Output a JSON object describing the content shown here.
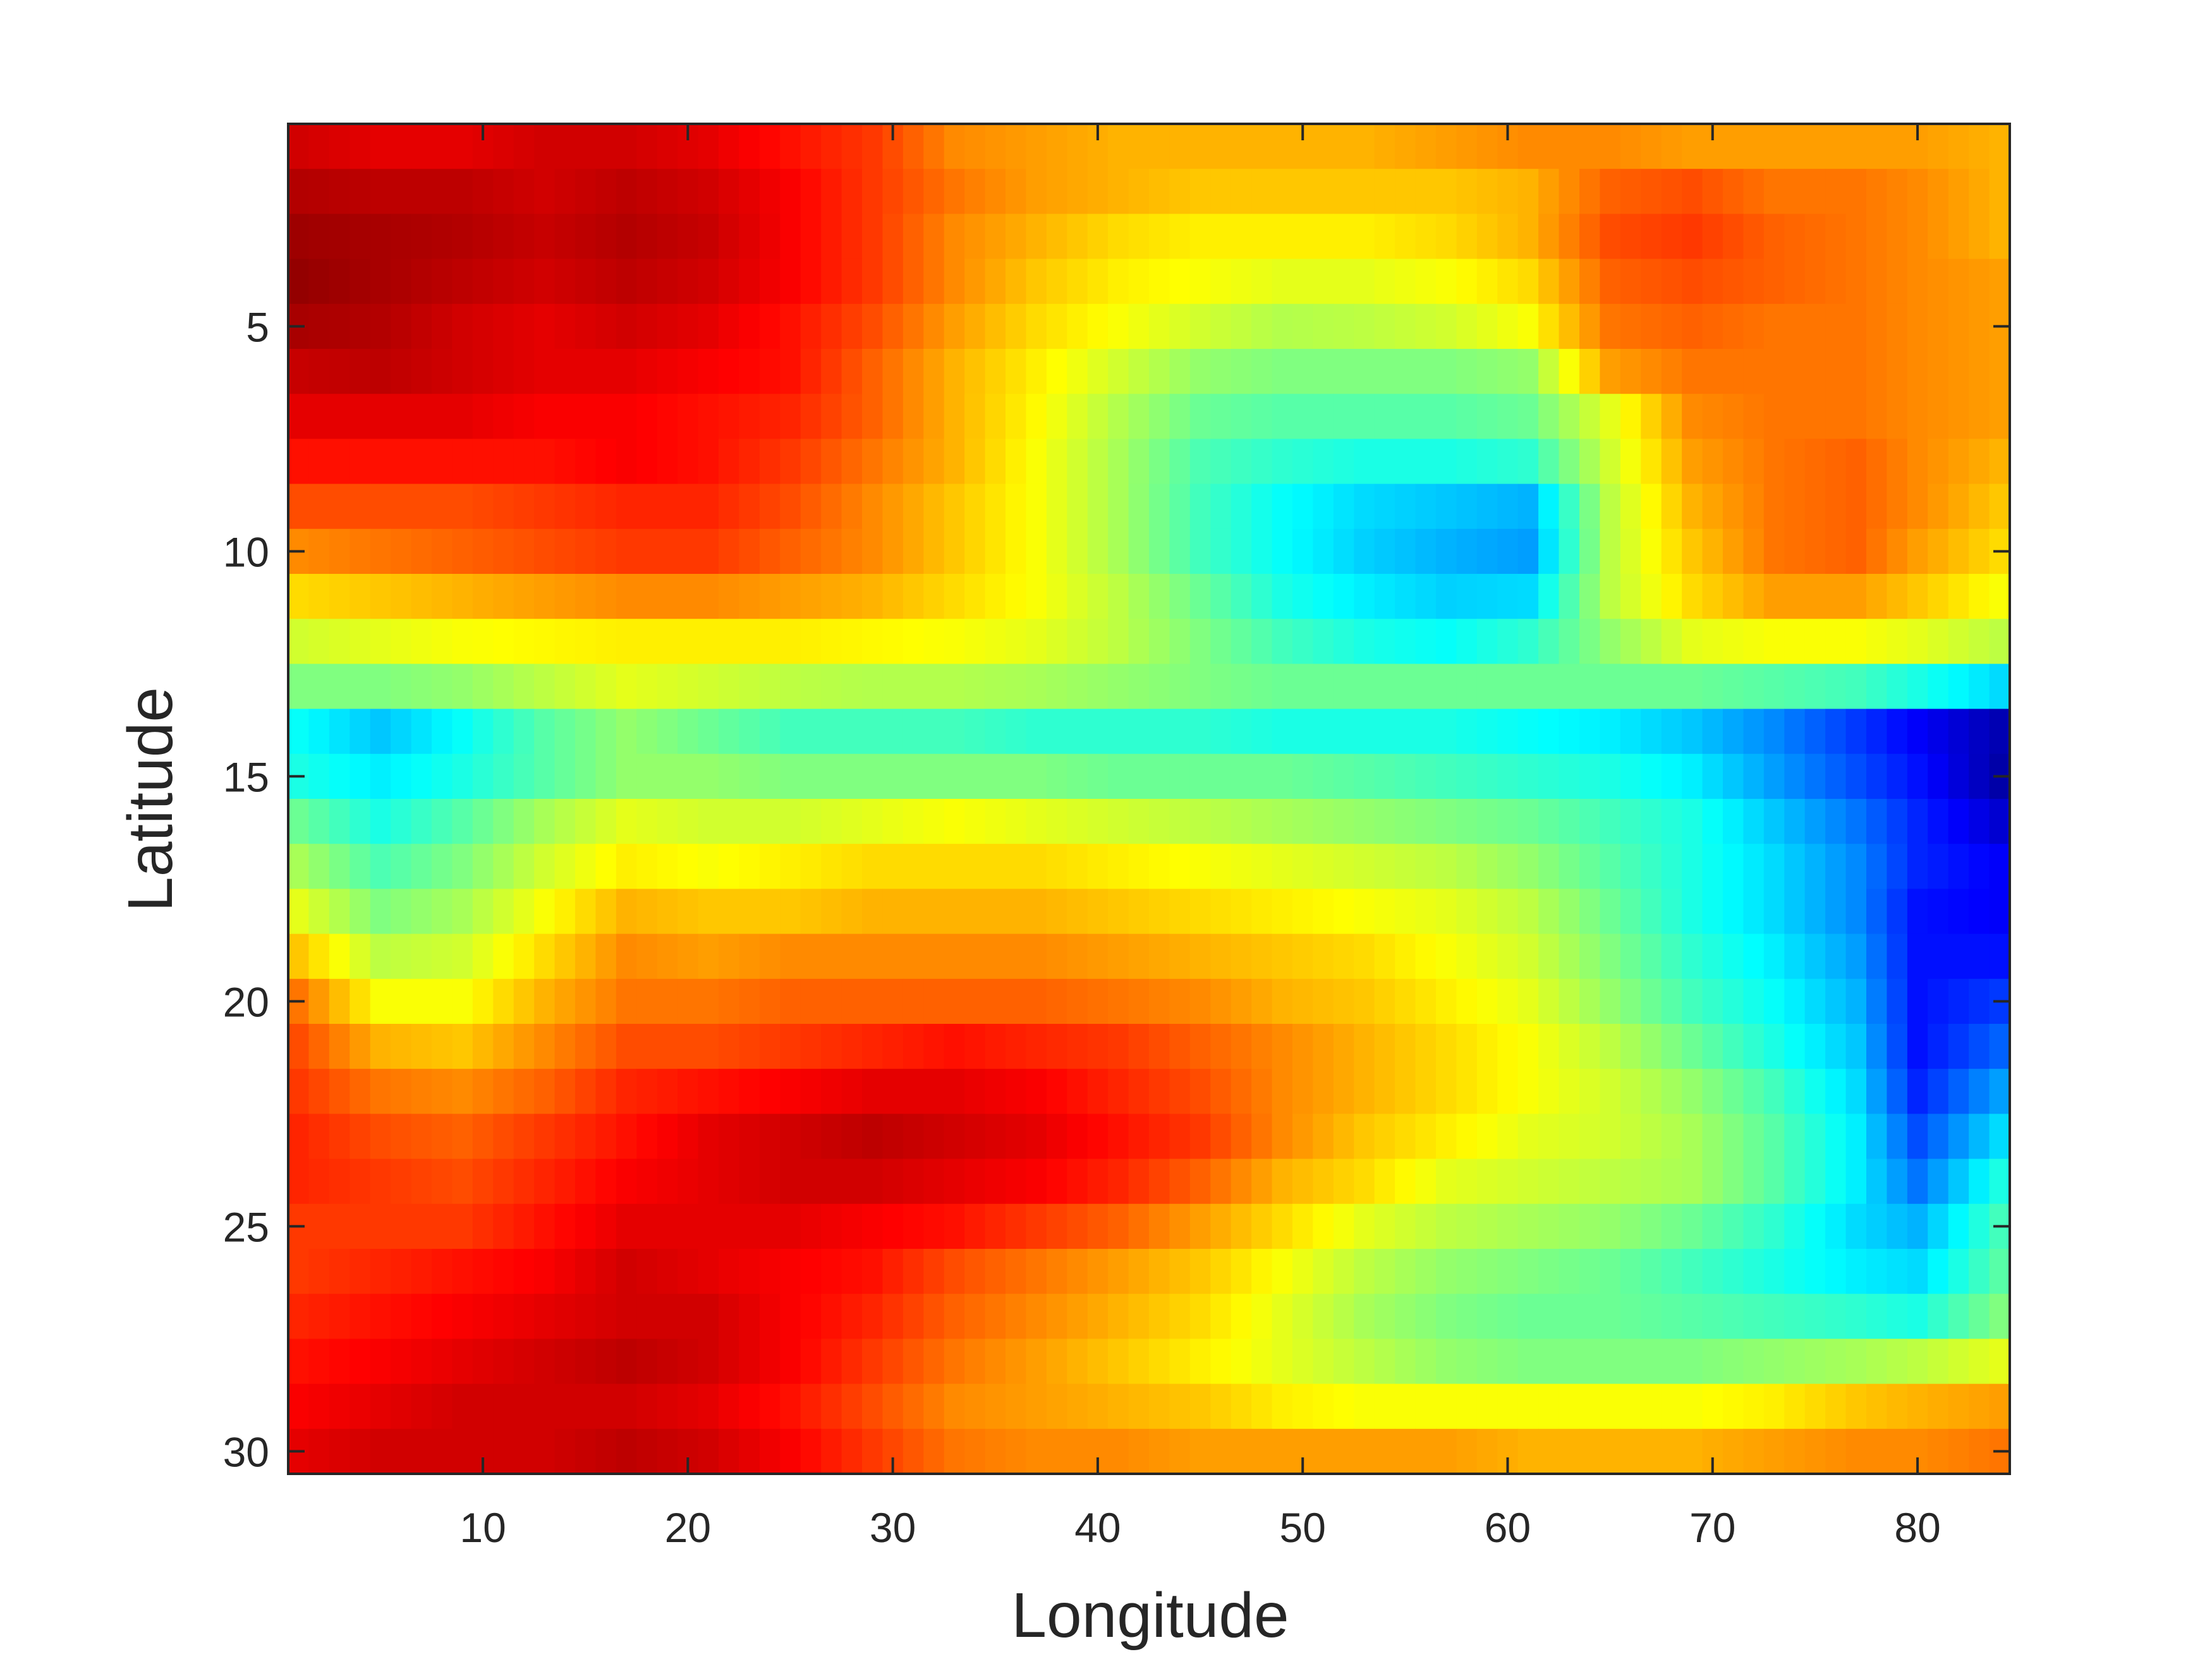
{
  "chart_data": {
    "type": "heatmap",
    "title": "",
    "xlabel": "Longitude",
    "ylabel": "Latitude",
    "colormap": "jet",
    "color_range": [
      0,
      1
    ],
    "x_range": [
      0.5,
      84.5
    ],
    "y_range": [
      0.5,
      30.5
    ],
    "y_direction": "reversed",
    "grid": false,
    "legend": "none",
    "xticks": [
      10,
      20,
      30,
      40,
      50,
      60,
      70,
      80
    ],
    "xtick_labels": [
      "10",
      "20",
      "30",
      "40",
      "50",
      "60",
      "70",
      "80"
    ],
    "yticks": [
      5,
      10,
      15,
      20,
      25,
      30
    ],
    "ytick_labels": [
      "5",
      "10",
      "15",
      "20",
      "25",
      "30"
    ],
    "x": [
      1,
      5,
      9,
      13,
      17,
      21,
      25,
      29,
      33,
      37,
      41,
      45,
      49,
      53,
      57,
      61,
      65,
      69,
      73,
      77,
      80,
      84
    ],
    "y": [
      1,
      2,
      3,
      4,
      5,
      6,
      7,
      8,
      9,
      10,
      11,
      12,
      13,
      14,
      15,
      16,
      17,
      18,
      19,
      20,
      21,
      22,
      23,
      24,
      25,
      26,
      27,
      28,
      29,
      30
    ],
    "z": [
      [
        0.92,
        0.9,
        0.9,
        0.92,
        0.92,
        0.9,
        0.86,
        0.82,
        0.74,
        0.72,
        0.7,
        0.7,
        0.7,
        0.7,
        0.72,
        0.74,
        0.74,
        0.72,
        0.72,
        0.72,
        0.72,
        0.7
      ],
      [
        0.95,
        0.94,
        0.94,
        0.92,
        0.94,
        0.92,
        0.88,
        0.82,
        0.76,
        0.72,
        0.7,
        0.68,
        0.68,
        0.68,
        0.68,
        0.7,
        0.78,
        0.8,
        0.76,
        0.76,
        0.74,
        0.7
      ],
      [
        0.97,
        0.96,
        0.95,
        0.93,
        0.95,
        0.93,
        0.88,
        0.82,
        0.74,
        0.7,
        0.66,
        0.64,
        0.64,
        0.64,
        0.66,
        0.7,
        0.8,
        0.82,
        0.78,
        0.76,
        0.74,
        0.7
      ],
      [
        0.98,
        0.96,
        0.94,
        0.92,
        0.94,
        0.92,
        0.88,
        0.82,
        0.74,
        0.68,
        0.64,
        0.62,
        0.6,
        0.6,
        0.62,
        0.66,
        0.78,
        0.8,
        0.78,
        0.76,
        0.74,
        0.72
      ],
      [
        0.96,
        0.95,
        0.92,
        0.9,
        0.92,
        0.9,
        0.86,
        0.8,
        0.72,
        0.66,
        0.62,
        0.58,
        0.55,
        0.56,
        0.58,
        0.62,
        0.76,
        0.78,
        0.76,
        0.76,
        0.74,
        0.72
      ],
      [
        0.93,
        0.94,
        0.92,
        0.9,
        0.9,
        0.88,
        0.86,
        0.78,
        0.7,
        0.64,
        0.58,
        0.52,
        0.5,
        0.5,
        0.5,
        0.52,
        0.72,
        0.76,
        0.76,
        0.76,
        0.74,
        0.72
      ],
      [
        0.9,
        0.9,
        0.9,
        0.88,
        0.88,
        0.86,
        0.84,
        0.78,
        0.7,
        0.63,
        0.55,
        0.48,
        0.46,
        0.46,
        0.46,
        0.48,
        0.6,
        0.74,
        0.76,
        0.76,
        0.74,
        0.72
      ],
      [
        0.86,
        0.86,
        0.86,
        0.86,
        0.88,
        0.86,
        0.82,
        0.76,
        0.7,
        0.62,
        0.54,
        0.45,
        0.42,
        0.4,
        0.4,
        0.42,
        0.58,
        0.72,
        0.76,
        0.78,
        0.74,
        0.7
      ],
      [
        0.8,
        0.8,
        0.8,
        0.82,
        0.84,
        0.84,
        0.8,
        0.74,
        0.68,
        0.62,
        0.54,
        0.44,
        0.38,
        0.34,
        0.32,
        0.3,
        0.56,
        0.7,
        0.76,
        0.78,
        0.74,
        0.68
      ],
      [
        0.74,
        0.76,
        0.78,
        0.8,
        0.82,
        0.82,
        0.78,
        0.74,
        0.68,
        0.62,
        0.54,
        0.44,
        0.38,
        0.33,
        0.3,
        0.28,
        0.56,
        0.68,
        0.76,
        0.78,
        0.72,
        0.66
      ],
      [
        0.66,
        0.68,
        0.7,
        0.72,
        0.74,
        0.74,
        0.72,
        0.7,
        0.66,
        0.62,
        0.56,
        0.48,
        0.4,
        0.36,
        0.33,
        0.34,
        0.56,
        0.66,
        0.72,
        0.72,
        0.68,
        0.62
      ],
      [
        0.58,
        0.6,
        0.62,
        0.63,
        0.64,
        0.64,
        0.64,
        0.63,
        0.62,
        0.6,
        0.56,
        0.5,
        0.44,
        0.4,
        0.38,
        0.42,
        0.52,
        0.6,
        0.62,
        0.62,
        0.6,
        0.56
      ],
      [
        0.5,
        0.5,
        0.52,
        0.56,
        0.6,
        0.58,
        0.56,
        0.55,
        0.55,
        0.54,
        0.52,
        0.5,
        0.48,
        0.48,
        0.48,
        0.48,
        0.48,
        0.48,
        0.46,
        0.44,
        0.4,
        0.34
      ],
      [
        0.38,
        0.32,
        0.38,
        0.46,
        0.52,
        0.48,
        0.44,
        0.44,
        0.44,
        0.42,
        0.42,
        0.42,
        0.4,
        0.4,
        0.4,
        0.38,
        0.36,
        0.32,
        0.26,
        0.18,
        0.12,
        0.05
      ],
      [
        0.4,
        0.36,
        0.4,
        0.46,
        0.52,
        0.52,
        0.5,
        0.5,
        0.5,
        0.5,
        0.48,
        0.48,
        0.48,
        0.46,
        0.44,
        0.42,
        0.4,
        0.36,
        0.28,
        0.2,
        0.14,
        0.04
      ],
      [
        0.48,
        0.4,
        0.46,
        0.54,
        0.6,
        0.58,
        0.58,
        0.6,
        0.62,
        0.6,
        0.58,
        0.56,
        0.54,
        0.52,
        0.5,
        0.48,
        0.44,
        0.4,
        0.32,
        0.24,
        0.16,
        0.08
      ],
      [
        0.54,
        0.45,
        0.5,
        0.58,
        0.64,
        0.62,
        0.64,
        0.66,
        0.66,
        0.66,
        0.64,
        0.62,
        0.6,
        0.58,
        0.56,
        0.52,
        0.46,
        0.4,
        0.34,
        0.26,
        0.16,
        0.12
      ],
      [
        0.6,
        0.5,
        0.54,
        0.62,
        0.7,
        0.68,
        0.68,
        0.7,
        0.7,
        0.7,
        0.68,
        0.66,
        0.64,
        0.62,
        0.6,
        0.56,
        0.48,
        0.4,
        0.34,
        0.26,
        0.14,
        0.12
      ],
      [
        0.68,
        0.56,
        0.58,
        0.66,
        0.74,
        0.72,
        0.74,
        0.74,
        0.74,
        0.74,
        0.72,
        0.7,
        0.68,
        0.66,
        0.62,
        0.58,
        0.5,
        0.42,
        0.36,
        0.28,
        0.14,
        0.14
      ],
      [
        0.76,
        0.62,
        0.62,
        0.7,
        0.76,
        0.76,
        0.78,
        0.78,
        0.78,
        0.78,
        0.76,
        0.74,
        0.7,
        0.68,
        0.64,
        0.6,
        0.52,
        0.44,
        0.38,
        0.3,
        0.14,
        0.18
      ],
      [
        0.8,
        0.7,
        0.68,
        0.74,
        0.8,
        0.8,
        0.82,
        0.84,
        0.86,
        0.84,
        0.82,
        0.78,
        0.74,
        0.7,
        0.66,
        0.62,
        0.56,
        0.48,
        0.4,
        0.32,
        0.14,
        0.22
      ],
      [
        0.82,
        0.76,
        0.74,
        0.78,
        0.84,
        0.86,
        0.88,
        0.9,
        0.9,
        0.88,
        0.84,
        0.8,
        0.74,
        0.7,
        0.66,
        0.62,
        0.58,
        0.52,
        0.44,
        0.34,
        0.16,
        0.28
      ],
      [
        0.84,
        0.8,
        0.78,
        0.82,
        0.86,
        0.9,
        0.92,
        0.94,
        0.92,
        0.9,
        0.86,
        0.82,
        0.74,
        0.68,
        0.64,
        0.6,
        0.58,
        0.54,
        0.46,
        0.36,
        0.2,
        0.34
      ],
      [
        0.84,
        0.82,
        0.8,
        0.84,
        0.88,
        0.9,
        0.92,
        0.92,
        0.9,
        0.88,
        0.84,
        0.78,
        0.7,
        0.66,
        0.6,
        0.58,
        0.56,
        0.54,
        0.46,
        0.36,
        0.24,
        0.4
      ],
      [
        0.82,
        0.82,
        0.82,
        0.86,
        0.9,
        0.9,
        0.9,
        0.88,
        0.86,
        0.82,
        0.78,
        0.72,
        0.66,
        0.6,
        0.56,
        0.54,
        0.52,
        0.48,
        0.42,
        0.34,
        0.3,
        0.44
      ],
      [
        0.82,
        0.84,
        0.86,
        0.88,
        0.92,
        0.9,
        0.88,
        0.86,
        0.8,
        0.76,
        0.72,
        0.68,
        0.62,
        0.56,
        0.52,
        0.5,
        0.48,
        0.44,
        0.4,
        0.36,
        0.34,
        0.46
      ],
      [
        0.84,
        0.86,
        0.88,
        0.9,
        0.92,
        0.92,
        0.88,
        0.84,
        0.78,
        0.74,
        0.7,
        0.66,
        0.6,
        0.54,
        0.5,
        0.48,
        0.48,
        0.46,
        0.44,
        0.42,
        0.4,
        0.5
      ],
      [
        0.86,
        0.88,
        0.9,
        0.92,
        0.94,
        0.92,
        0.88,
        0.82,
        0.76,
        0.72,
        0.68,
        0.64,
        0.6,
        0.56,
        0.52,
        0.5,
        0.5,
        0.5,
        0.52,
        0.54,
        0.56,
        0.6
      ],
      [
        0.88,
        0.9,
        0.92,
        0.92,
        0.92,
        0.9,
        0.86,
        0.8,
        0.74,
        0.72,
        0.7,
        0.68,
        0.64,
        0.62,
        0.62,
        0.62,
        0.62,
        0.62,
        0.64,
        0.68,
        0.7,
        0.72
      ],
      [
        0.9,
        0.92,
        0.92,
        0.92,
        0.94,
        0.92,
        0.88,
        0.82,
        0.76,
        0.74,
        0.74,
        0.72,
        0.72,
        0.72,
        0.72,
        0.7,
        0.7,
        0.7,
        0.72,
        0.74,
        0.74,
        0.76
      ]
    ]
  }
}
